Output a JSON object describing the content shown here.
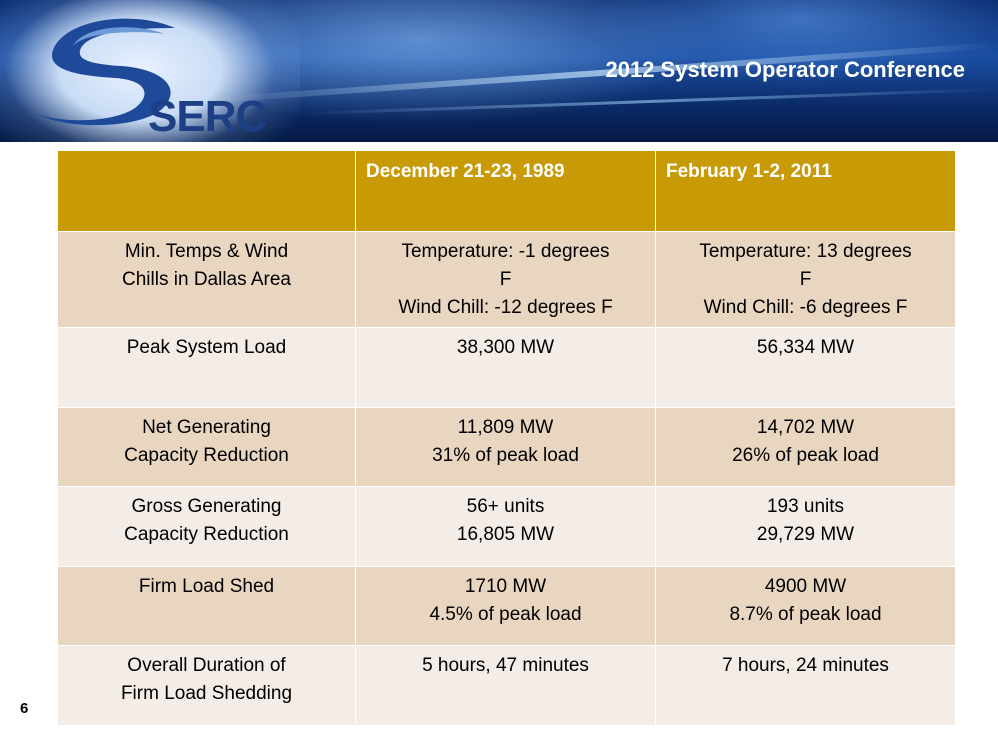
{
  "header": {
    "conference_title": "2012 System Operator Conference",
    "logo_text": "SERC"
  },
  "table": {
    "columns": [
      "",
      "December 21-23, 1989",
      "February 1-2, 2011"
    ],
    "rows": [
      {
        "label": [
          "Min. Temps & Wind",
          "Chills in Dallas Area"
        ],
        "c1": [
          "Temperature: -1 degrees",
          "F",
          "Wind Chill: -12 degrees F"
        ],
        "c2": [
          "Temperature: 13 degrees",
          "F",
          "Wind Chill: -6 degrees F"
        ]
      },
      {
        "label": [
          "Peak System Load"
        ],
        "c1": [
          "38,300 MW"
        ],
        "c2": [
          "56,334 MW"
        ]
      },
      {
        "label": [
          "Net Generating",
          "Capacity Reduction"
        ],
        "c1": [
          "11,809 MW",
          "31% of peak load"
        ],
        "c2": [
          "14,702 MW",
          "26% of peak load"
        ]
      },
      {
        "label": [
          "Gross Generating",
          "Capacity Reduction"
        ],
        "c1": [
          "56+ units",
          "16,805 MW"
        ],
        "c2": [
          "193 units",
          "29,729 MW"
        ]
      },
      {
        "label": [
          "Firm Load Shed"
        ],
        "c1": [
          "1710 MW",
          "4.5% of peak load"
        ],
        "c2": [
          "4900 MW",
          "8.7% of peak load"
        ]
      },
      {
        "label": [
          "Overall Duration of",
          "Firm Load Shedding"
        ],
        "c1": [
          "5 hours, 47 minutes"
        ],
        "c2": [
          "7 hours, 24 minutes"
        ]
      }
    ]
  },
  "page_number": "6",
  "colors": {
    "header_gold": "#c89a06",
    "row_tan": "#e8d6c0",
    "row_light": "#f4ece6",
    "banner_blue": "#1b4fa3"
  }
}
